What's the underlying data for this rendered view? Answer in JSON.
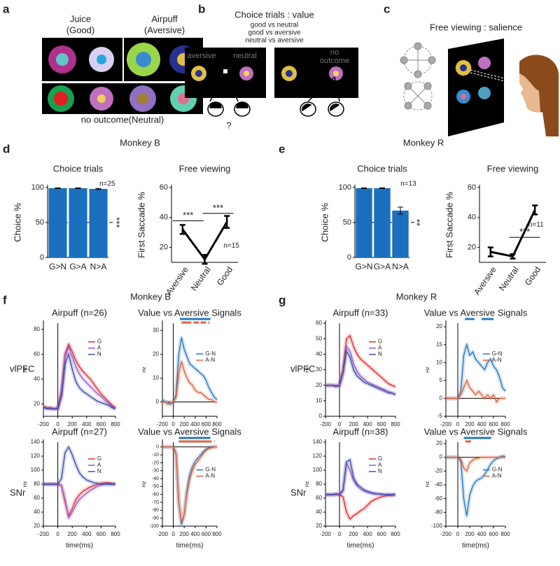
{
  "figure": {
    "a": {
      "letter": "a",
      "good": "Juice",
      "good_sub": "(Good)",
      "aversive": "Airpuff",
      "aversive_sub": "(Aversive)",
      "neutral": "no outcome(Neutral)"
    },
    "b": {
      "letter": "b",
      "title": "Choice trials : value",
      "pairs": [
        "good vs neutral",
        "good vs aversive",
        "neutral vs aversive"
      ],
      "screen1": [
        "aversive",
        "neutral"
      ],
      "screen2": [
        "no",
        "outcome"
      ],
      "question": "?"
    },
    "c": {
      "letter": "c",
      "title": "Free viewing : salience"
    },
    "d": {
      "letter": "d",
      "title": "Monkey B"
    },
    "e": {
      "letter": "e",
      "title": "Monkey R"
    },
    "f": {
      "letter": "f",
      "title": "Monkey B",
      "rows": [
        "vlPFC",
        "SNr"
      ]
    },
    "g": {
      "letter": "g",
      "title": "Monkey R",
      "rows": [
        "vlPFC",
        "SNr"
      ]
    }
  },
  "chart_data": [
    {
      "type": "bar",
      "title": "Choice trials",
      "ylabel": "Choice  %",
      "categories": [
        "G>N",
        "G>A",
        "N>A"
      ],
      "values": [
        99,
        99,
        98
      ],
      "errors": [
        0.5,
        0.5,
        0.8
      ],
      "color": "#1b6fbf",
      "ylim": [
        0,
        100
      ],
      "yticks": [
        0,
        50,
        100
      ],
      "refline": 50,
      "annotations": [
        "n=25",
        "***"
      ]
    },
    {
      "type": "line",
      "title": "Free viewing",
      "ylabel": "First Saccade %",
      "categories": [
        "Aversive",
        "Neutral",
        "Good"
      ],
      "values": [
        32,
        12,
        37
      ],
      "errors": [
        3,
        3,
        4
      ],
      "color": "#000000",
      "ylim": [
        10,
        60
      ],
      "yticks": [
        20,
        40,
        60
      ],
      "annotations": [
        "***",
        "***",
        "n=15"
      ]
    },
    {
      "type": "bar",
      "title": "Choice trials",
      "ylabel": "Choice  %",
      "categories": [
        "G>N",
        "G>A",
        "N>A"
      ],
      "values": [
        99,
        99,
        67
      ],
      "errors": [
        0.5,
        0.5,
        5
      ],
      "color": "#1b6fbf",
      "ylim": [
        0,
        100
      ],
      "yticks": [
        0,
        50,
        100
      ],
      "refline": 50,
      "annotations": [
        "n=13",
        "**"
      ]
    },
    {
      "type": "line",
      "title": "Free viewing",
      "ylabel": "First Saccade %",
      "categories": [
        "Aversive",
        "Neutral",
        "Good"
      ],
      "values": [
        17,
        14,
        45
      ],
      "errors": [
        3,
        1.5,
        3
      ],
      "color": "#000000",
      "ylim": [
        10,
        60
      ],
      "yticks": [
        20,
        40,
        60
      ],
      "annotations": [
        "***",
        "n=11"
      ]
    },
    {
      "type": "line",
      "title": "Airpuff (n=26)",
      "ylabel": "Hz",
      "x": [
        -200,
        -150,
        -100,
        -50,
        0,
        50,
        100,
        150,
        200,
        250,
        300,
        350,
        400,
        450,
        500,
        550,
        600,
        650,
        700,
        750,
        800
      ],
      "xlim": [
        -200,
        800
      ],
      "xticks": [
        -200,
        0,
        200,
        400,
        600,
        800
      ],
      "ylim": [
        10,
        85
      ],
      "yticks": [
        20,
        40,
        60,
        80
      ],
      "series": [
        {
          "name": "G",
          "color": "#e8262b",
          "values": [
            18,
            17,
            17,
            16,
            17,
            30,
            60,
            68,
            62,
            55,
            50,
            46,
            43,
            40,
            36,
            32,
            28,
            25,
            22,
            19,
            17
          ]
        },
        {
          "name": "A",
          "color": "#9a5cc8",
          "values": [
            17,
            17,
            16,
            16,
            16,
            28,
            58,
            66,
            58,
            50,
            44,
            40,
            37,
            34,
            31,
            28,
            26,
            23,
            21,
            18,
            16
          ]
        },
        {
          "name": "N",
          "color": "#3b4db0",
          "values": [
            17,
            16,
            16,
            16,
            16,
            26,
            52,
            60,
            48,
            38,
            33,
            30,
            28,
            26,
            24,
            22,
            21,
            20,
            19,
            17,
            16
          ]
        }
      ]
    },
    {
      "type": "line",
      "title": "Value vs Aversive Signals",
      "ylabel": "Hz",
      "x": [
        -200,
        -150,
        -100,
        -50,
        0,
        50,
        100,
        150,
        200,
        250,
        300,
        350,
        400,
        450,
        500,
        550,
        600,
        650,
        700,
        750,
        800
      ],
      "xlim": [
        -200,
        800
      ],
      "xticks": [
        -200,
        0,
        200,
        400,
        600,
        800
      ],
      "ylim": [
        -6,
        33
      ],
      "yticks": [
        0,
        10,
        20,
        30
      ],
      "series": [
        {
          "name": "G-N",
          "color": "#2878c0",
          "values": [
            1,
            0,
            0,
            -1,
            0,
            3,
            20,
            27,
            22,
            19,
            16,
            15,
            14,
            13,
            12,
            11,
            9,
            6,
            4,
            2,
            1
          ]
        },
        {
          "name": "A-N",
          "color": "#e0603a",
          "values": [
            0,
            0,
            -1,
            0,
            0,
            2,
            12,
            17,
            13,
            10,
            8,
            7,
            5,
            4,
            4,
            3,
            2,
            1,
            1,
            0,
            0
          ]
        }
      ],
      "sig": [
        {
          "color": "#2878c0",
          "ranges": [
            [
              120,
              680
            ]
          ]
        },
        {
          "color": "#e0603a",
          "ranges": [
            [
              150,
              330
            ],
            [
              370,
              470
            ],
            [
              500,
              600
            ],
            [
              640,
              660
            ]
          ]
        }
      ]
    },
    {
      "type": "line",
      "title": "Airpuff (n=27)",
      "ylabel": "Hz",
      "xlabel": "time(ms)",
      "x": [
        -200,
        -150,
        -100,
        -50,
        0,
        50,
        100,
        150,
        200,
        250,
        300,
        350,
        400,
        450,
        500,
        550,
        600,
        650,
        700,
        750,
        800
      ],
      "xlim": [
        -200,
        800
      ],
      "xticks": [
        -200,
        0,
        200,
        400,
        600,
        800
      ],
      "ylim": [
        20,
        140
      ],
      "yticks": [
        20,
        40,
        60,
        80,
        100,
        120,
        140
      ],
      "series": [
        {
          "name": "G",
          "color": "#e8262b",
          "values": [
            80,
            80,
            80,
            80,
            80,
            78,
            55,
            35,
            45,
            58,
            65,
            70,
            73,
            76,
            78,
            80,
            81,
            82,
            82,
            81,
            80
          ]
        },
        {
          "name": "A",
          "color": "#9a5cc8",
          "values": [
            80,
            80,
            80,
            80,
            80,
            78,
            58,
            32,
            40,
            50,
            58,
            63,
            67,
            71,
            74,
            77,
            79,
            80,
            80,
            80,
            80
          ]
        },
        {
          "name": "N",
          "color": "#3b4db0",
          "values": [
            80,
            80,
            80,
            80,
            80,
            88,
            125,
            133,
            122,
            108,
            96,
            90,
            86,
            84,
            82,
            81,
            80,
            80,
            80,
            80,
            80
          ]
        }
      ]
    },
    {
      "type": "line",
      "title": "Value vs Aversive Signals",
      "ylabel": "Hz",
      "xlabel": "time(ms)",
      "x": [
        -200,
        -150,
        -100,
        -50,
        0,
        50,
        100,
        150,
        200,
        250,
        300,
        350,
        400,
        450,
        500,
        550,
        600,
        650,
        700,
        750,
        800
      ],
      "xlim": [
        -200,
        800
      ],
      "xticks": [
        -200,
        0,
        200,
        400,
        600,
        800
      ],
      "ylim": [
        -100,
        6
      ],
      "yticks": [
        -100,
        -90,
        -80,
        -70,
        -60,
        -50,
        -40,
        -30,
        -20,
        -10,
        0
      ],
      "series": [
        {
          "name": "G-N",
          "color": "#2878c0",
          "values": [
            0,
            0,
            0,
            0,
            0,
            -8,
            -70,
            -98,
            -85,
            -55,
            -35,
            -25,
            -18,
            -14,
            -10,
            -6,
            -3,
            -1,
            0,
            0,
            0
          ]
        },
        {
          "name": "A-N",
          "color": "#e0603a",
          "values": [
            0,
            0,
            0,
            0,
            0,
            -10,
            -70,
            -95,
            -85,
            -58,
            -40,
            -30,
            -22,
            -18,
            -13,
            -8,
            -4,
            -2,
            -1,
            0,
            0
          ]
        }
      ],
      "sig": [
        {
          "color": "#2878c0",
          "ranges": [
            [
              100,
              680
            ]
          ]
        },
        {
          "color": "#e0603a",
          "ranges": [
            [
              100,
              700
            ],
            [
              750,
              760
            ]
          ]
        }
      ]
    },
    {
      "type": "line",
      "title": "Airpuff (n=33)",
      "ylabel": "Hz",
      "x": [
        -200,
        -150,
        -100,
        -50,
        0,
        50,
        100,
        150,
        200,
        250,
        300,
        350,
        400,
        450,
        500,
        550,
        600,
        650,
        700,
        750,
        800
      ],
      "xlim": [
        -200,
        800
      ],
      "xticks": [
        -200,
        0,
        200,
        400,
        600,
        800
      ],
      "ylim": [
        0,
        60
      ],
      "yticks": [
        0,
        10,
        20,
        30,
        40,
        50,
        60
      ],
      "series": [
        {
          "name": "G",
          "color": "#e8262b",
          "values": [
            20,
            20,
            20,
            20,
            20,
            30,
            50,
            52,
            45,
            40,
            37,
            35,
            33,
            31,
            29,
            27,
            25,
            23,
            21,
            20,
            19
          ]
        },
        {
          "name": "A",
          "color": "#9a5cc8",
          "values": [
            20,
            20,
            20,
            20,
            20,
            28,
            45,
            42,
            34,
            29,
            26,
            24,
            22,
            21,
            20,
            19,
            18,
            17,
            16,
            15,
            14
          ]
        },
        {
          "name": "N",
          "color": "#3b4db0",
          "values": [
            20,
            20,
            20,
            19,
            20,
            28,
            42,
            38,
            30,
            26,
            24,
            22,
            21,
            20,
            19,
            18,
            17,
            16,
            15,
            15,
            14
          ]
        }
      ]
    },
    {
      "type": "line",
      "title": "Value vs Aversive Signals",
      "ylabel": "Hz",
      "x": [
        -200,
        -150,
        -100,
        -50,
        0,
        50,
        100,
        150,
        200,
        250,
        300,
        350,
        400,
        450,
        500,
        550,
        600,
        650,
        700,
        750,
        800
      ],
      "xlim": [
        -200,
        800
      ],
      "xticks": [
        -200,
        0,
        200,
        400,
        600,
        800
      ],
      "ylim": [
        -5,
        21
      ],
      "yticks": [
        -5,
        0,
        5,
        10,
        15,
        20
      ],
      "series": [
        {
          "name": "G-N",
          "color": "#2878c0",
          "values": [
            0,
            0,
            0,
            0,
            0,
            2,
            12,
            15,
            12,
            13,
            11,
            10,
            9,
            8,
            10,
            11,
            9,
            8,
            6,
            3,
            2
          ]
        },
        {
          "name": "A-N",
          "color": "#e0603a",
          "values": [
            0,
            0,
            0,
            0,
            0,
            1,
            3,
            5,
            3,
            2,
            1,
            2,
            1,
            0,
            1,
            0,
            1,
            -1,
            0,
            0,
            0
          ]
        }
      ],
      "sig": [
        {
          "color": "#2878c0",
          "ranges": [
            [
              120,
              280
            ],
            [
              400,
              600
            ]
          ]
        }
      ]
    },
    {
      "type": "line",
      "title": "Airpuff (n=38)",
      "ylabel": "Hz",
      "xlabel": "time(ms)",
      "x": [
        -200,
        -150,
        -100,
        -50,
        0,
        50,
        100,
        150,
        200,
        250,
        300,
        350,
        400,
        450,
        500,
        550,
        600,
        650,
        700,
        750,
        800
      ],
      "xlim": [
        -200,
        800
      ],
      "xticks": [
        -200,
        0,
        200,
        400,
        600,
        800
      ],
      "ylim": [
        20,
        140
      ],
      "yticks": [
        20,
        40,
        60,
        80,
        100,
        120,
        140
      ],
      "series": [
        {
          "name": "G",
          "color": "#e8262b",
          "values": [
            65,
            65,
            65,
            65,
            65,
            62,
            40,
            30,
            35,
            38,
            42,
            45,
            50,
            55,
            58,
            60,
            62,
            63,
            64,
            64,
            65
          ]
        },
        {
          "name": "A",
          "color": "#9a5cc8",
          "values": [
            65,
            65,
            65,
            66,
            65,
            70,
            110,
            100,
            85,
            78,
            73,
            70,
            68,
            67,
            66,
            66,
            65,
            65,
            65,
            65,
            65
          ]
        },
        {
          "name": "N",
          "color": "#3b4db0",
          "values": [
            65,
            65,
            65,
            66,
            65,
            72,
            112,
            115,
            90,
            80,
            76,
            72,
            70,
            68,
            67,
            66,
            66,
            65,
            65,
            65,
            65
          ]
        }
      ]
    },
    {
      "type": "line",
      "title": "Value vs Aversive Signals",
      "ylabel": "Hz",
      "xlabel": "time(ms)",
      "x": [
        -200,
        -150,
        -100,
        -50,
        0,
        50,
        100,
        150,
        200,
        250,
        300,
        350,
        400,
        450,
        500,
        550,
        600,
        650,
        700,
        750,
        800
      ],
      "xlim": [
        -200,
        800
      ],
      "xticks": [
        -200,
        0,
        200,
        400,
        600,
        800
      ],
      "ylim": [
        -100,
        22
      ],
      "yticks": [
        -100,
        -80,
        -60,
        -40,
        -20,
        0,
        20
      ],
      "series": [
        {
          "name": "G-N",
          "color": "#2878c0",
          "values": [
            0,
            0,
            0,
            0,
            0,
            -5,
            -60,
            -85,
            -55,
            -42,
            -35,
            -32,
            -30,
            -25,
            -18,
            -10,
            -5,
            -2,
            0,
            2,
            1
          ]
        },
        {
          "name": "A-N",
          "color": "#e0603a",
          "values": [
            0,
            0,
            0,
            0,
            0,
            -3,
            -15,
            -20,
            -8,
            -4,
            -2,
            -1,
            0,
            0,
            0,
            0,
            0,
            0,
            0,
            0,
            0
          ]
        }
      ],
      "sig": [
        {
          "color": "#2878c0",
          "ranges": [
            [
              100,
              560
            ]
          ]
        },
        {
          "color": "#e0603a",
          "ranges": [
            [
              130,
              220
            ]
          ]
        }
      ]
    }
  ]
}
